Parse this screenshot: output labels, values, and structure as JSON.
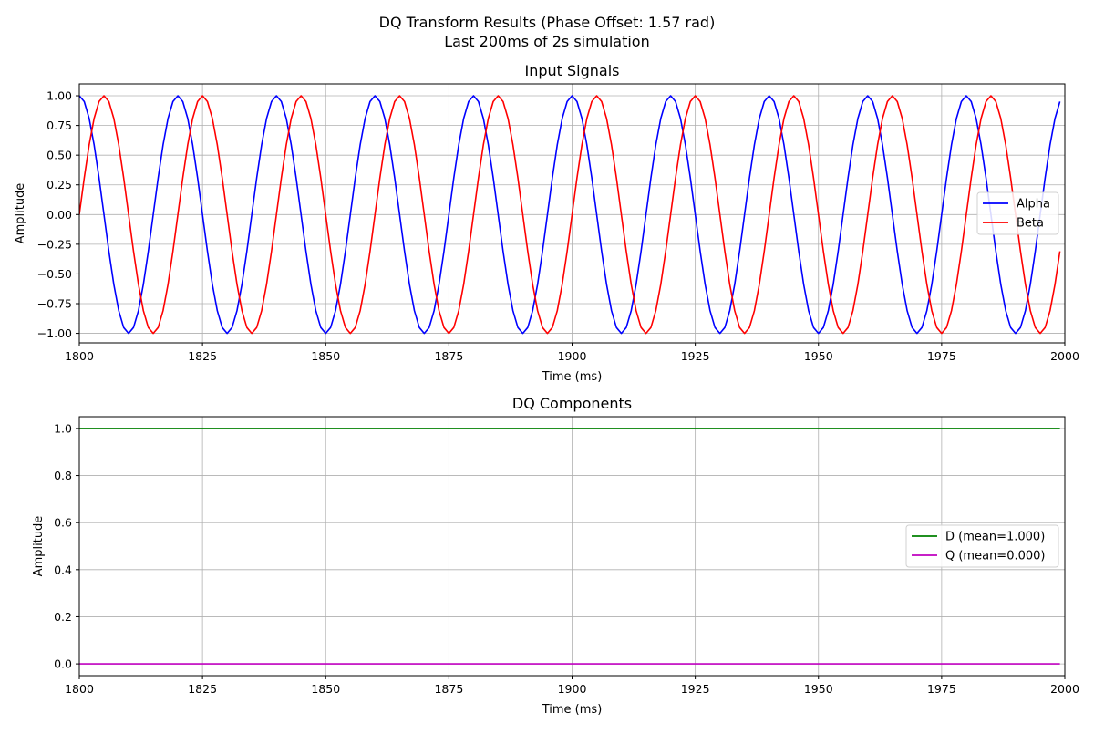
{
  "suptitle": {
    "line1": "DQ Transform Results (Phase Offset: 1.57 rad)",
    "line2": "Last 200ms of 2s simulation"
  },
  "chart_data": [
    {
      "type": "line",
      "title": "Input Signals",
      "xlabel": "Time (ms)",
      "ylabel": "Amplitude",
      "xlim": [
        1800,
        2000
      ],
      "ylim": [
        -1.08,
        1.1
      ],
      "xticks": [
        1800,
        1825,
        1850,
        1875,
        1900,
        1925,
        1950,
        1975,
        2000
      ],
      "xtick_labels": [
        "1800",
        "1825",
        "1850",
        "1875",
        "1900",
        "1925",
        "1950",
        "1975",
        "2000"
      ],
      "yticks": [
        -1.0,
        -0.75,
        -0.5,
        -0.25,
        0.0,
        0.25,
        0.5,
        0.75,
        1.0
      ],
      "ytick_labels": [
        "−1.00",
        "−0.75",
        "−0.50",
        "−0.25",
        "0.00",
        "0.25",
        "0.50",
        "0.75",
        "1.00"
      ],
      "grid": true,
      "legend_position": "right",
      "sampling": {
        "x_start": 1800,
        "x_end": 1999,
        "step": 1
      },
      "series": [
        {
          "name": "Alpha",
          "color": "#0000ff",
          "function": "cos",
          "amplitude": 1.0,
          "frequency_hz": 50,
          "phase_rad": 0.0
        },
        {
          "name": "Beta",
          "color": "#ff0000",
          "function": "sin",
          "amplitude": 1.0,
          "frequency_hz": 50,
          "phase_rad": 0.0
        }
      ]
    },
    {
      "type": "line",
      "title": "DQ Components",
      "xlabel": "Time (ms)",
      "ylabel": "Amplitude",
      "xlim": [
        1800,
        2000
      ],
      "ylim": [
        -0.05,
        1.05
      ],
      "xticks": [
        1800,
        1825,
        1850,
        1875,
        1900,
        1925,
        1950,
        1975,
        2000
      ],
      "xtick_labels": [
        "1800",
        "1825",
        "1850",
        "1875",
        "1900",
        "1925",
        "1950",
        "1975",
        "2000"
      ],
      "yticks": [
        0.0,
        0.2,
        0.4,
        0.6,
        0.8,
        1.0
      ],
      "ytick_labels": [
        "0.0",
        "0.2",
        "0.4",
        "0.6",
        "0.8",
        "1.0"
      ],
      "grid": true,
      "legend_position": "right",
      "sampling": {
        "x_start": 1800,
        "x_end": 1999,
        "step": 1
      },
      "series": [
        {
          "name": "D (mean=1.000)",
          "color": "#008000",
          "function": "const",
          "value": 1.0
        },
        {
          "name": "Q (mean=0.000)",
          "color": "#bf00bf",
          "function": "const",
          "value": 0.0
        }
      ]
    }
  ]
}
